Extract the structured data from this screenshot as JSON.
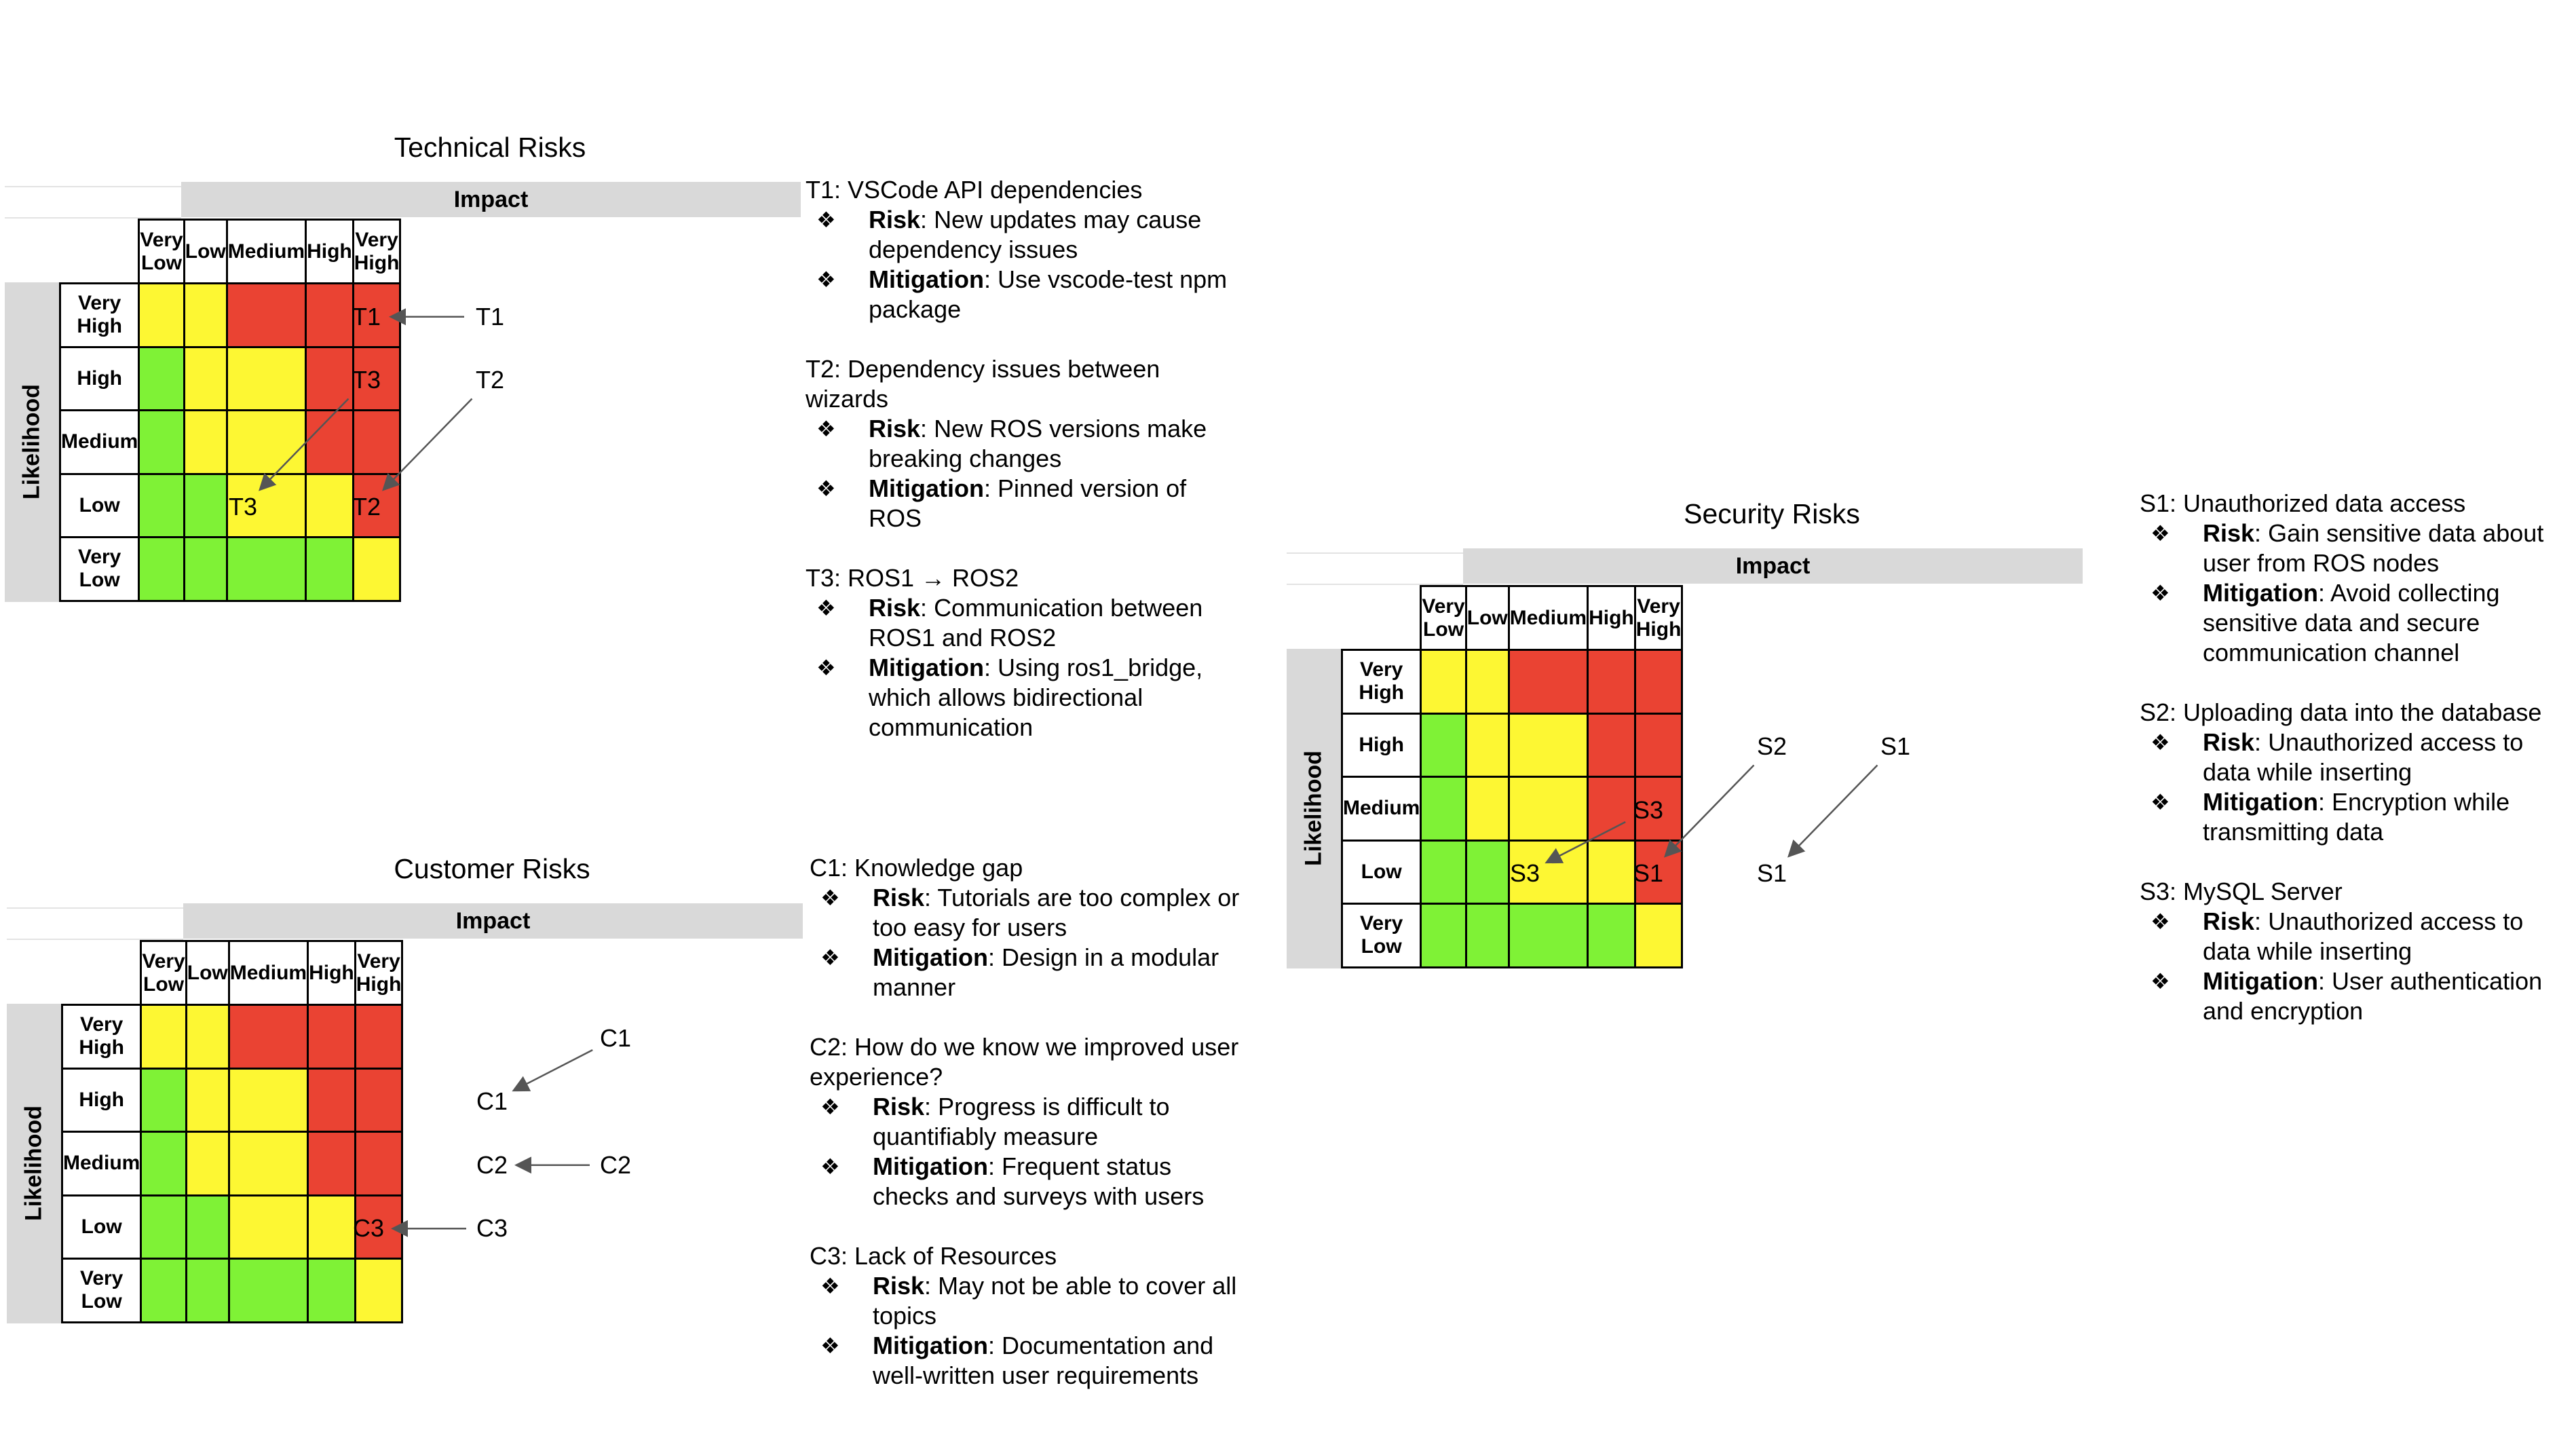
{
  "impact_label": "Impact",
  "likelihood_label": "Likelihood",
  "impact_levels": [
    "Very Low",
    "Low",
    "Medium",
    "High",
    "Very High"
  ],
  "likelihood_levels": [
    "Very High",
    "High",
    "Medium",
    "Low",
    "Very Low"
  ],
  "colors": {
    "green": "#7ff236",
    "yellow": "#fdf733",
    "red": "#ea4333",
    "band": "#d9d9d9"
  },
  "matrices": {
    "technical": {
      "title": "Technical Risks",
      "cells": [
        [
          "Y",
          "Y",
          "R",
          "R",
          "R"
        ],
        [
          "G",
          "Y",
          "Y",
          "R",
          "R"
        ],
        [
          "G",
          "Y",
          "Y",
          "R",
          "R"
        ],
        [
          "G",
          "G",
          "Y",
          "Y",
          "R"
        ],
        [
          "G",
          "G",
          "G",
          "G",
          "Y"
        ]
      ],
      "markers": [
        {
          "label": "T1",
          "row": 0,
          "col": 1
        },
        {
          "label": "T1",
          "row": 0,
          "col": 2
        },
        {
          "label": "T3",
          "row": 1,
          "col": 1
        },
        {
          "label": "T2",
          "row": 1,
          "col": 2
        },
        {
          "label": "T3",
          "row": 3,
          "col": 0
        },
        {
          "label": "T2",
          "row": 3,
          "col": 1
        }
      ],
      "arrows": [
        {
          "from": 1,
          "to": 0
        },
        {
          "from": 2,
          "to": 4
        },
        {
          "from": 3,
          "to": 5
        }
      ]
    },
    "customer": {
      "title": "Customer Risks",
      "cells": [
        [
          "Y",
          "Y",
          "R",
          "R",
          "R"
        ],
        [
          "G",
          "Y",
          "Y",
          "R",
          "R"
        ],
        [
          "G",
          "Y",
          "Y",
          "R",
          "R"
        ],
        [
          "G",
          "G",
          "Y",
          "Y",
          "R"
        ],
        [
          "G",
          "G",
          "G",
          "G",
          "Y"
        ]
      ],
      "markers": [
        {
          "label": "C1",
          "row": 0,
          "col": 3
        },
        {
          "label": "C1",
          "row": 1,
          "col": 2
        },
        {
          "label": "C2",
          "row": 2,
          "col": 2
        },
        {
          "label": "C2",
          "row": 2,
          "col": 3
        },
        {
          "label": "C3",
          "row": 3,
          "col": 1
        },
        {
          "label": "C3",
          "row": 3,
          "col": 2
        }
      ],
      "arrows": [
        {
          "from": 0,
          "to": 1
        },
        {
          "from": 3,
          "to": 2
        },
        {
          "from": 5,
          "to": 4
        }
      ]
    },
    "security": {
      "title": "Security Risks",
      "cells": [
        [
          "Y",
          "Y",
          "R",
          "R",
          "R"
        ],
        [
          "G",
          "Y",
          "Y",
          "R",
          "R"
        ],
        [
          "G",
          "Y",
          "Y",
          "R",
          "R"
        ],
        [
          "G",
          "G",
          "Y",
          "Y",
          "R"
        ],
        [
          "G",
          "G",
          "G",
          "G",
          "Y"
        ]
      ],
      "markers": [
        {
          "label": "S2",
          "row": 1,
          "col": 2
        },
        {
          "label": "S1",
          "row": 1,
          "col": 3
        },
        {
          "label": "S3",
          "row": 2,
          "col": 1
        },
        {
          "label": "S3",
          "row": 3,
          "col": 0
        },
        {
          "label": "S1",
          "row": 3,
          "col": 1
        },
        {
          "label": "S1",
          "row": 3,
          "col": 2
        }
      ],
      "arrows": [
        {
          "from": 2,
          "to": 3
        },
        {
          "from": 0,
          "to": 4
        },
        {
          "from": 1,
          "to": 5
        }
      ]
    }
  },
  "notes": {
    "technical": [
      {
        "title": "T1: VSCode API dependencies",
        "risk": "New updates may cause dependency issues",
        "mitigation": "Use vscode-test npm package"
      },
      {
        "title": "T2: Dependency issues between wizards",
        "risk": "New ROS versions make breaking changes",
        "mitigation": "Pinned version of ROS"
      },
      {
        "title": "T3: ROS1 → ROS2",
        "risk": "Communication between ROS1 and ROS2",
        "mitigation": "Using ros1_bridge, which allows bidirectional communication"
      }
    ],
    "customer": [
      {
        "title": "C1: Knowledge gap",
        "risk": "Tutorials are too complex or too easy for users",
        "mitigation": "Design in a modular manner"
      },
      {
        "title": "C2:  How do we know we improved user experience?",
        "risk": "Progress is difficult to quantifiably measure",
        "mitigation": "Frequent status checks and surveys with users"
      },
      {
        "title": "C3:  Lack of Resources",
        "risk": "May not be able to cover all topics",
        "mitigation": "Documentation and well-written user requirements"
      }
    ],
    "security": [
      {
        "title": "S1: Unauthorized data access",
        "risk": "Gain sensitive data about user from ROS nodes",
        "mitigation": "Avoid collecting sensitive data and secure communication channel"
      },
      {
        "title": "S2: Uploading data into the database",
        "risk": "Unauthorized access to data while inserting",
        "mitigation": "Encryption while transmitting data"
      },
      {
        "title": "S3: MySQL Server",
        "risk": "Unauthorized access to data while inserting",
        "mitigation": "User authentication and encryption"
      }
    ],
    "risk_label": "Risk",
    "mitigation_label": "Mitigation",
    "bullet_glyph": "❖"
  }
}
